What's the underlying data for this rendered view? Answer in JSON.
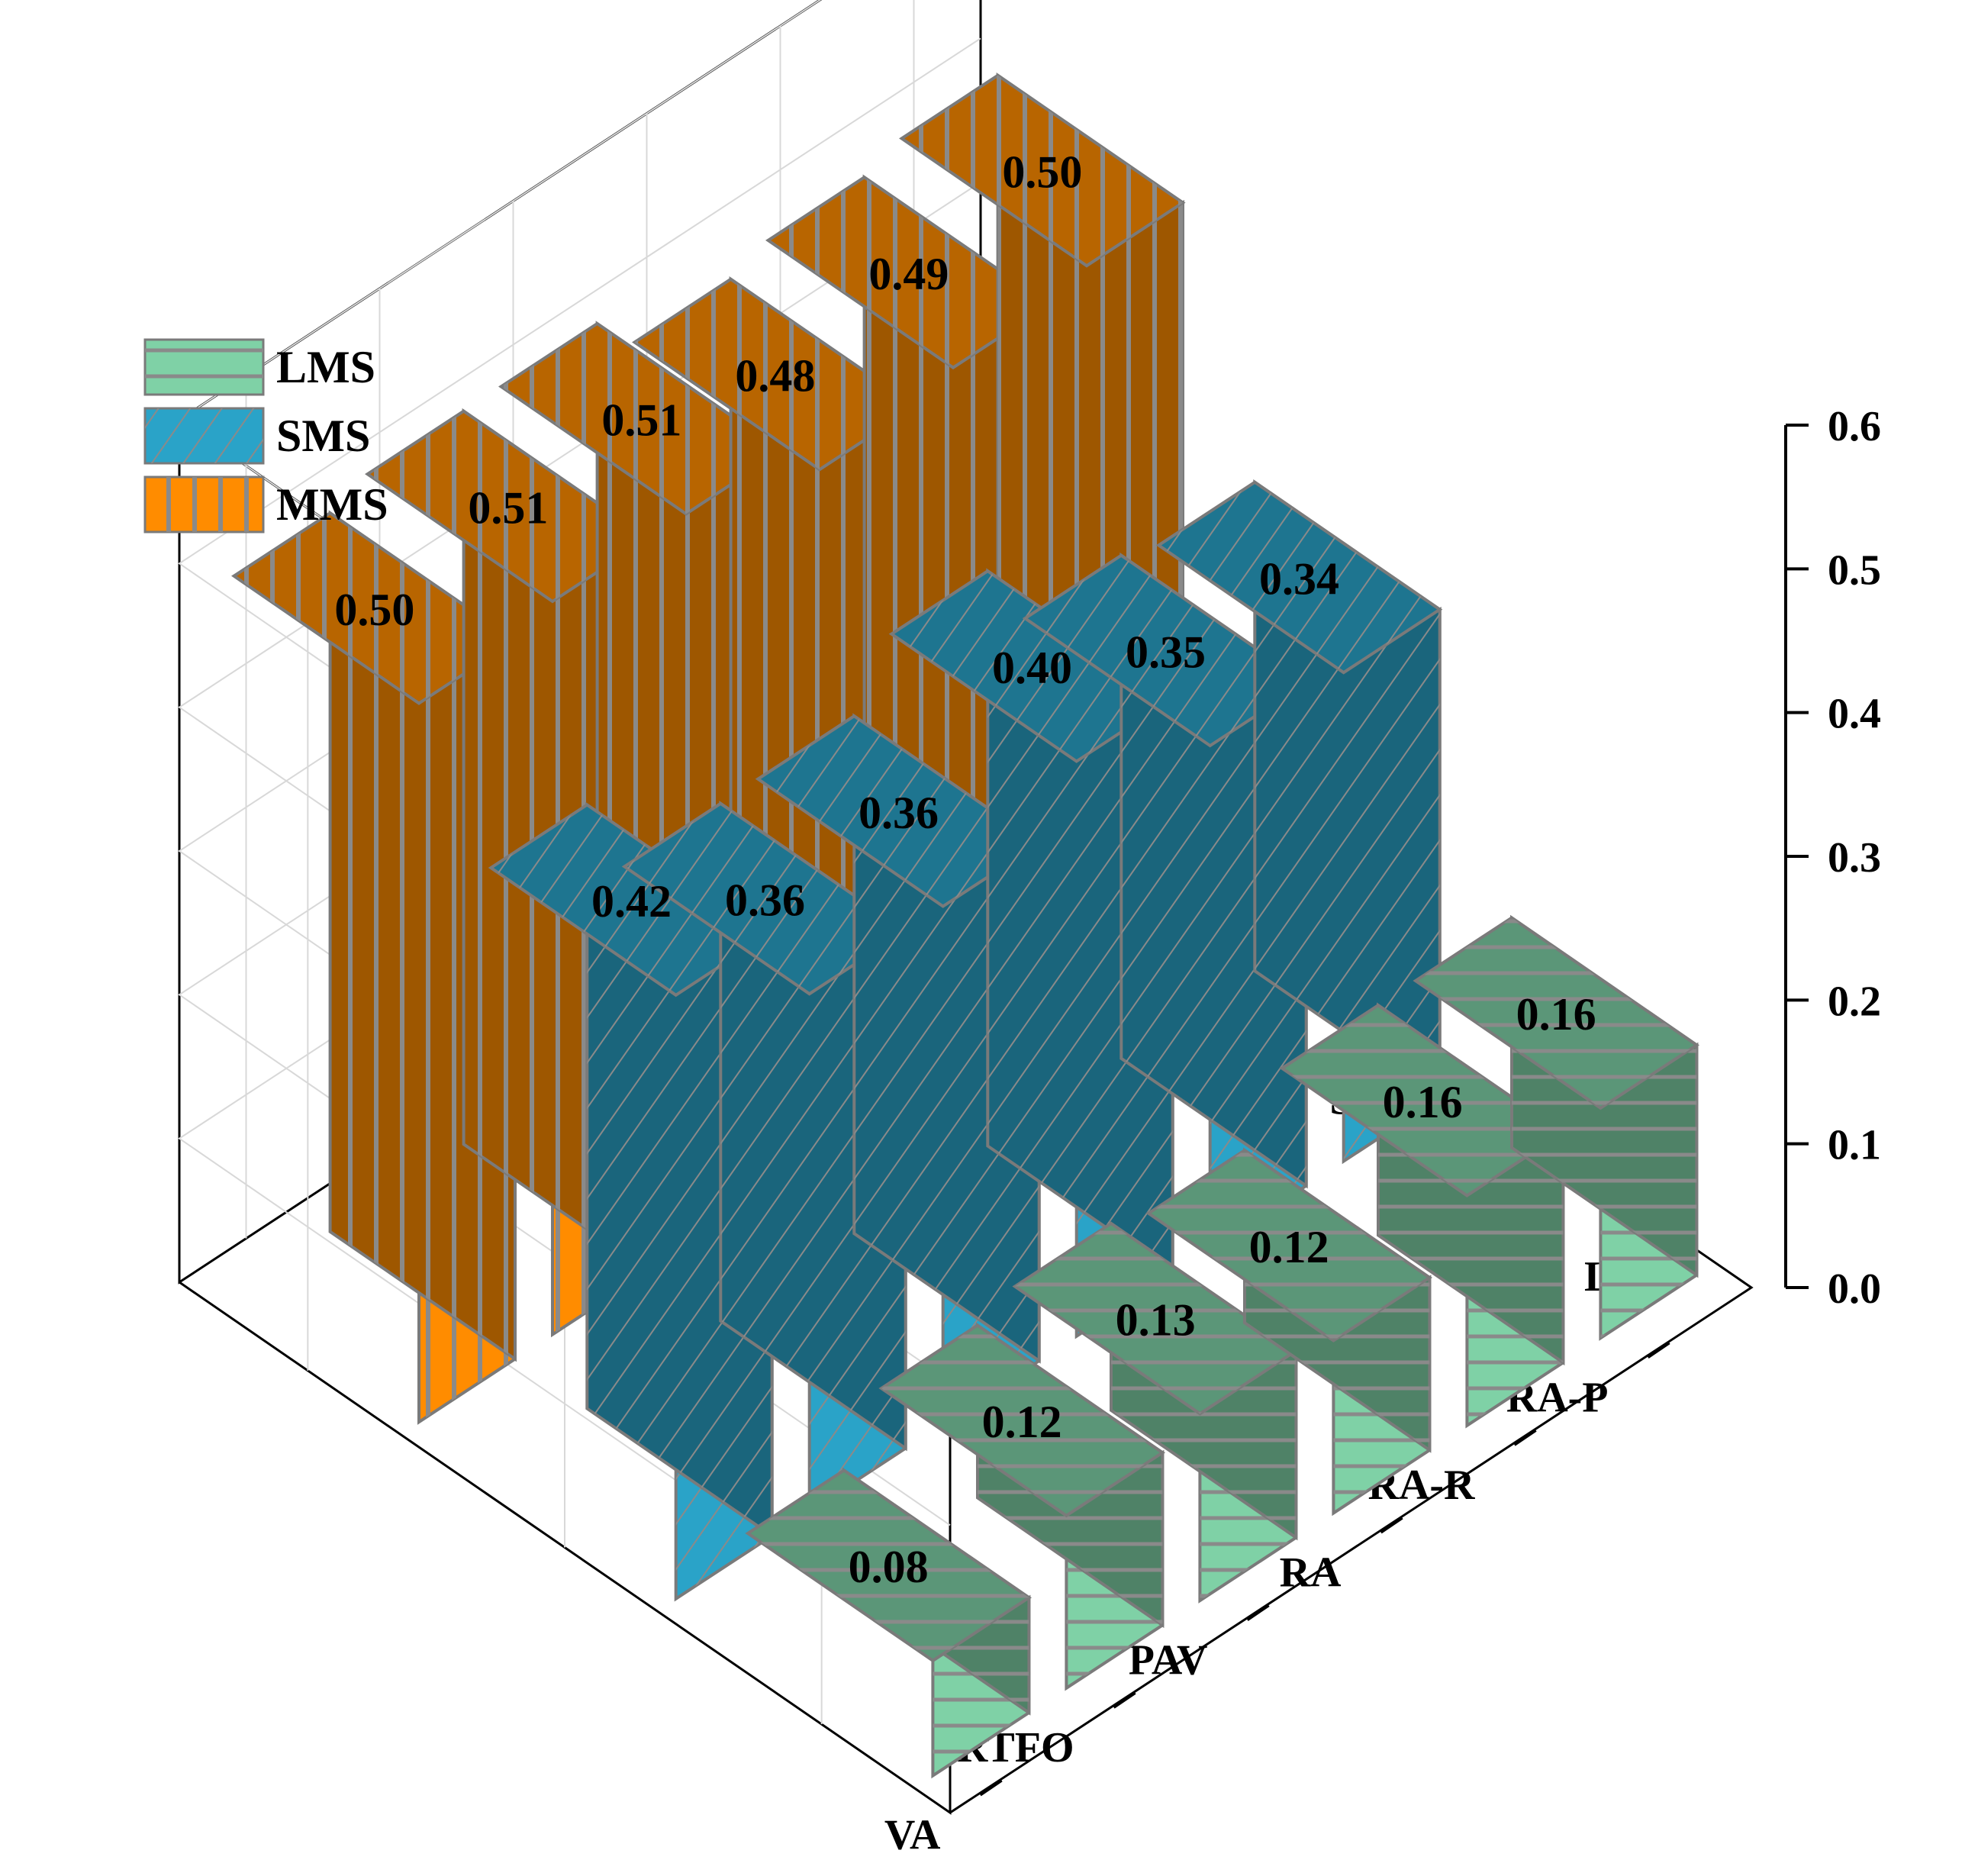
{
  "chart_data": {
    "type": "bar",
    "title": "",
    "xlabel": "",
    "ylabel": "",
    "categories": [
      "RA-P",
      "RA-R",
      "RA",
      "PAV",
      "RTFO",
      "VA"
    ],
    "zlim": [
      0.0,
      0.6
    ],
    "z_ticks": [
      "0.0",
      "0.1",
      "0.2",
      "0.3",
      "0.4",
      "0.5",
      "0.6"
    ],
    "depth_categories": [
      "LMS",
      "SMS",
      "MMS"
    ],
    "legend_position": "top-left",
    "grid": true,
    "series": [
      {
        "name": "LMS",
        "values": [
          0.16,
          0.16,
          0.12,
          0.13,
          0.12,
          0.08
        ],
        "labels": [
          "0.16",
          "0.16",
          "0.12",
          "0.13",
          "0.12",
          "0.08"
        ],
        "color": "#7fd1a6",
        "pattern": "horizontal-stripes"
      },
      {
        "name": "SMS",
        "values": [
          0.34,
          0.35,
          0.4,
          0.36,
          0.36,
          0.42
        ],
        "labels": [
          "0.34",
          "0.35",
          "0.40",
          "0.36",
          "0.36",
          "0.42"
        ],
        "color": "#2aa3c8",
        "pattern": "diagonal-hatch"
      },
      {
        "name": "MMS",
        "values": [
          0.5,
          0.49,
          0.48,
          0.51,
          0.51,
          0.5
        ],
        "labels": [
          "0.50",
          "0.49",
          "0.48",
          "0.51",
          "0.51",
          "0.50"
        ],
        "color": "#ff8c00",
        "pattern": "vertical-stripes"
      }
    ]
  }
}
